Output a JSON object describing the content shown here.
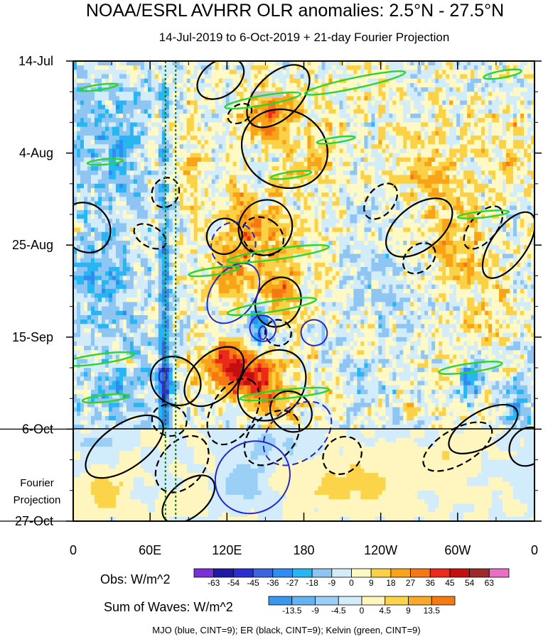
{
  "chart_data": {
    "type": "heatmap",
    "title": "NOAA/ESRL AVHRR OLR anomalies: 2.5°N - 27.5°N",
    "subtitle": "14-Jul-2019 to 6-Oct-2019 + 21-day Fourier Projection",
    "xlabel": "",
    "ylabel": "",
    "x_ticks": [
      "0",
      "60E",
      "120E",
      "180",
      "120W",
      "60W",
      "0"
    ],
    "x_tick_values": [
      0,
      60,
      120,
      180,
      240,
      300,
      360
    ],
    "y_ticks": [
      "14-Jul",
      "4-Aug",
      "25-Aug",
      "15-Sep",
      "6-Oct",
      "27-Oct"
    ],
    "y_tick_days": [
      0,
      21,
      42,
      63,
      84,
      105
    ],
    "xlim": [
      0,
      360
    ],
    "ylim_days": [
      0,
      105
    ],
    "observation_end_day": 84,
    "projection_label": [
      "Fourier",
      "Projection"
    ],
    "vertical_reference_lines_lon": [
      72,
      80
    ],
    "obs_colorbar": {
      "label": "Obs: W/m^2",
      "levels": [
        "-63",
        "-54",
        "-45",
        "-36",
        "-27",
        "-18",
        "-9",
        "0",
        "9",
        "18",
        "27",
        "36",
        "45",
        "54",
        "63"
      ],
      "colors": [
        "#7b2fd8",
        "#1e1aa6",
        "#2b2ed0",
        "#3d63de",
        "#2f8cf0",
        "#27b6f2",
        "#8ec5f2",
        "#d3ecfa",
        "#fff9c6",
        "#fbd247",
        "#f8a418",
        "#f57814",
        "#ec2a1c",
        "#c40f0f",
        "#9c2c2c",
        "#ea6fc4"
      ]
    },
    "waves_colorbar": {
      "label": "Sum of Waves: W/m^2",
      "levels": [
        "-13.5",
        "-9",
        "-4.5",
        "0",
        "4.5",
        "9",
        "13.5"
      ],
      "colors": [
        "#3a96ee",
        "#63b3f2",
        "#9acff6",
        "#d2ecfb",
        "#fff6bf",
        "#fbd44a",
        "#f8a92a",
        "#f57a14"
      ]
    },
    "contour_note": "MJO (blue, CINT=9); ER (black, CINT=9); Kelvin (green, CINT=9)",
    "series_colors": {
      "MJO": "#2727c8",
      "ER": "#000000",
      "Kelvin": "#2fd42f"
    }
  }
}
